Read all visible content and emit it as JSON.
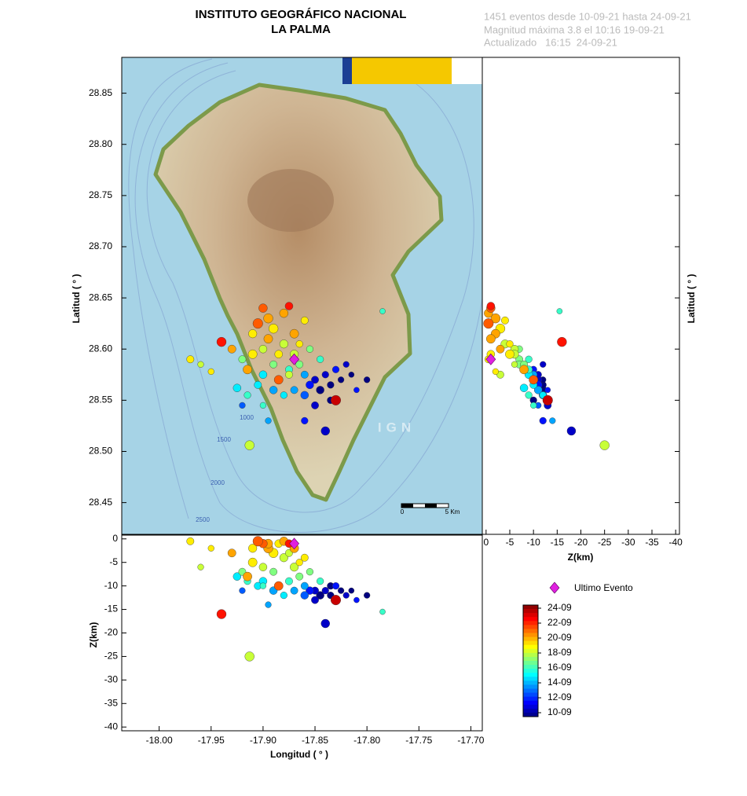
{
  "chart_data": {
    "type": "scatter",
    "title": "INSTITUTO GEOGRÁFICO NACIONAL",
    "subtitle": "LA PALMA",
    "info": [
      "1451 eventos desde 10-09-21 hasta 24-09-21",
      "Magnitud máxima 3.8 el 10:16 19-09-21",
      "Actualizado   16:15  24-09-21"
    ],
    "xlabel": "Longitud ( ° )",
    "ylabel": "Latitud ( ° )",
    "zlabel": "Z(km)",
    "xlim": [
      -18.036,
      -17.689
    ],
    "ylim": [
      28.419,
      28.885
    ],
    "zlim": [
      0.8,
      -40.8
    ],
    "xticks": [
      {
        "value": -18.0,
        "label": "-18.00"
      },
      {
        "value": -17.95,
        "label": "-17.95"
      },
      {
        "value": -17.9,
        "label": "-17.90"
      },
      {
        "value": -17.85,
        "label": "-17.85"
      },
      {
        "value": -17.8,
        "label": "-17.80"
      },
      {
        "value": -17.75,
        "label": "-17.75"
      },
      {
        "value": -17.7,
        "label": "-17.70"
      }
    ],
    "yticks": [
      {
        "value": 28.45,
        "label": "28.45"
      },
      {
        "value": 28.5,
        "label": "28.50"
      },
      {
        "value": 28.55,
        "label": "28.55"
      },
      {
        "value": 28.6,
        "label": "28.60"
      },
      {
        "value": 28.65,
        "label": "28.65"
      },
      {
        "value": 28.7,
        "label": "28.70"
      },
      {
        "value": 28.75,
        "label": "28.75"
      },
      {
        "value": 28.8,
        "label": "28.80"
      },
      {
        "value": 28.85,
        "label": "28.85"
      }
    ],
    "zticks": [
      0,
      -5,
      -10,
      -15,
      -20,
      -25,
      -30,
      -35,
      -40
    ],
    "clim": [
      10,
      24
    ],
    "cticks": [
      {
        "value": 24,
        "label": "24-09"
      },
      {
        "value": 22,
        "label": "22-09"
      },
      {
        "value": 20,
        "label": "20-09"
      },
      {
        "value": 18,
        "label": "18-09"
      },
      {
        "value": 16,
        "label": "16-09"
      },
      {
        "value": 14,
        "label": "14-09"
      },
      {
        "value": 12,
        "label": "12-09"
      },
      {
        "value": 10,
        "label": "10-09"
      }
    ],
    "legend": "Ultimo Evento",
    "last_event": {
      "lon": -17.87,
      "lat": 28.59,
      "depth": -1,
      "color": "#e020e0"
    },
    "annotations": [
      "1000",
      "1500",
      "2000",
      "2500",
      "IGN",
      "0",
      "5 Km"
    ],
    "lon": [
      -17.97,
      -17.96,
      -17.95,
      -17.94,
      -17.913,
      -17.785,
      -17.83,
      -17.84,
      -17.9,
      -17.895,
      -17.905,
      -17.88,
      -17.875,
      -17.89,
      -17.87,
      -17.86,
      -17.88,
      -17.9,
      -17.91,
      -17.92,
      -17.915,
      -17.9,
      -17.89,
      -17.885,
      -17.875,
      -17.87,
      -17.865,
      -17.86,
      -17.855,
      -17.85,
      -17.845,
      -17.84,
      -17.835,
      -17.83,
      -17.825,
      -17.82,
      -17.815,
      -17.81,
      -17.85,
      -17.86,
      -17.87,
      -17.88,
      -17.89,
      -17.905,
      -17.915,
      -17.925,
      -17.92,
      -17.895,
      -17.86,
      -17.875,
      -17.885,
      -17.895,
      -17.865,
      -17.855,
      -17.845,
      -17.835,
      -17.8,
      -17.9,
      -17.93,
      -17.91
    ],
    "lat": [
      28.59,
      28.585,
      28.578,
      28.607,
      28.506,
      28.637,
      28.55,
      28.52,
      28.64,
      28.63,
      28.625,
      28.635,
      28.642,
      28.62,
      28.615,
      28.628,
      28.605,
      28.6,
      28.595,
      28.59,
      28.58,
      28.575,
      28.585,
      28.57,
      28.58,
      28.595,
      28.585,
      28.575,
      28.565,
      28.57,
      28.56,
      28.575,
      28.565,
      28.58,
      28.57,
      28.585,
      28.575,
      28.56,
      28.545,
      28.555,
      28.56,
      28.555,
      28.56,
      28.565,
      28.555,
      28.562,
      28.545,
      28.53,
      28.53,
      28.575,
      28.595,
      28.61,
      28.605,
      28.6,
      28.59,
      28.55,
      28.57,
      28.545,
      28.6,
      28.615
    ],
    "depth": [
      -0.5,
      -6,
      -2,
      -16,
      -25,
      -15.5,
      -13,
      -18,
      -1,
      -2,
      -0.5,
      -0.5,
      -1,
      -3,
      -2,
      -4,
      -4,
      -6,
      -5,
      -7,
      -8,
      -9,
      -7,
      -10,
      -9,
      -6,
      -8,
      -10,
      -11,
      -11,
      -12,
      -11,
      -12,
      -10,
      -11,
      -12,
      -11,
      -13,
      -13,
      -12,
      -11,
      -12,
      -11,
      -10,
      -9,
      -8,
      -11,
      -14,
      -12,
      -3,
      -1,
      -1,
      -5,
      -7,
      -9,
      -10,
      -12,
      -10,
      -3,
      -2
    ],
    "day": [
      19,
      18,
      19,
      22,
      18,
      16,
      23,
      11,
      21,
      20,
      21,
      20,
      22,
      19,
      20,
      19,
      18,
      18,
      19,
      17,
      20,
      15,
      17,
      21,
      16,
      18,
      17,
      14,
      12,
      11,
      10,
      11,
      10,
      12,
      10,
      11,
      10,
      12,
      11,
      13,
      14,
      15,
      14,
      15,
      16,
      15,
      13,
      14,
      12,
      18,
      19,
      20,
      19,
      17,
      16,
      10,
      10,
      16,
      20,
      19
    ],
    "magnitude": [
      2.0,
      1.5,
      1.5,
      2.8,
      2.8,
      1.3,
      3.0,
      2.5,
      2.5,
      2.8,
      3.0,
      2.5,
      2.2,
      2.8,
      2.6,
      2.0,
      2.4,
      2.2,
      2.6,
      2.0,
      2.6,
      2.2,
      2.0,
      2.6,
      2.0,
      2.4,
      2.0,
      2.0,
      2.2,
      2.0,
      2.2,
      1.8,
      1.8,
      1.8,
      1.5,
      1.5,
      1.3,
      1.3,
      2.0,
      2.2,
      2.0,
      1.8,
      2.2,
      2.0,
      1.8,
      2.2,
      1.5,
      1.5,
      1.8,
      2.0,
      2.2,
      2.6,
      1.8,
      1.8,
      1.8,
      1.8,
      1.5,
      1.5,
      2.3,
      2.4
    ]
  }
}
